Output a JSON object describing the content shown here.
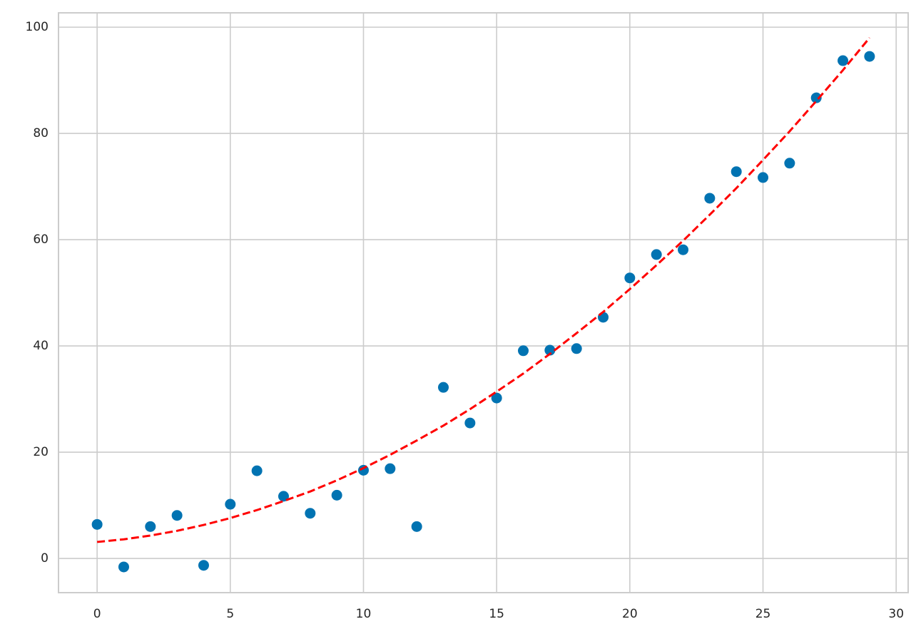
{
  "chart_data": {
    "type": "scatter",
    "x": [
      0,
      1,
      2,
      3,
      4,
      5,
      6,
      7,
      8,
      9,
      10,
      11,
      12,
      13,
      14,
      15,
      16,
      17,
      18,
      19,
      20,
      21,
      22,
      23,
      24,
      25,
      26,
      27,
      28,
      29
    ],
    "series": [
      {
        "style": "points",
        "color": "#0173b2",
        "values": [
          6.4,
          -1.6,
          6.0,
          8.1,
          -1.3,
          10.2,
          16.5,
          11.7,
          8.5,
          11.9,
          16.6,
          16.9,
          6.0,
          32.2,
          25.5,
          30.2,
          39.1,
          39.2,
          39.5,
          45.4,
          52.8,
          57.2,
          58.1,
          67.8,
          72.8,
          71.7,
          74.4,
          86.7,
          93.7,
          94.5
        ]
      },
      {
        "style": "dashed-line",
        "color": "#ff0000",
        "values": [
          3.1,
          3.6,
          4.3,
          5.2,
          6.3,
          7.6,
          9.1,
          10.8,
          12.6,
          14.7,
          17.0,
          19.5,
          22.2,
          25.0,
          28.1,
          31.4,
          34.8,
          38.5,
          42.4,
          46.4,
          50.7,
          55.2,
          59.8,
          64.7,
          69.7,
          75.0,
          80.4,
          86.1,
          91.9,
          98.0
        ]
      }
    ],
    "xlim": [
      -1.45,
      30.45
    ],
    "ylim": [
      -6.44,
      102.7
    ],
    "xticks": [
      0,
      5,
      10,
      15,
      20,
      25,
      30
    ],
    "yticks": [
      0,
      20,
      40,
      60,
      80,
      100
    ],
    "grid": true
  }
}
